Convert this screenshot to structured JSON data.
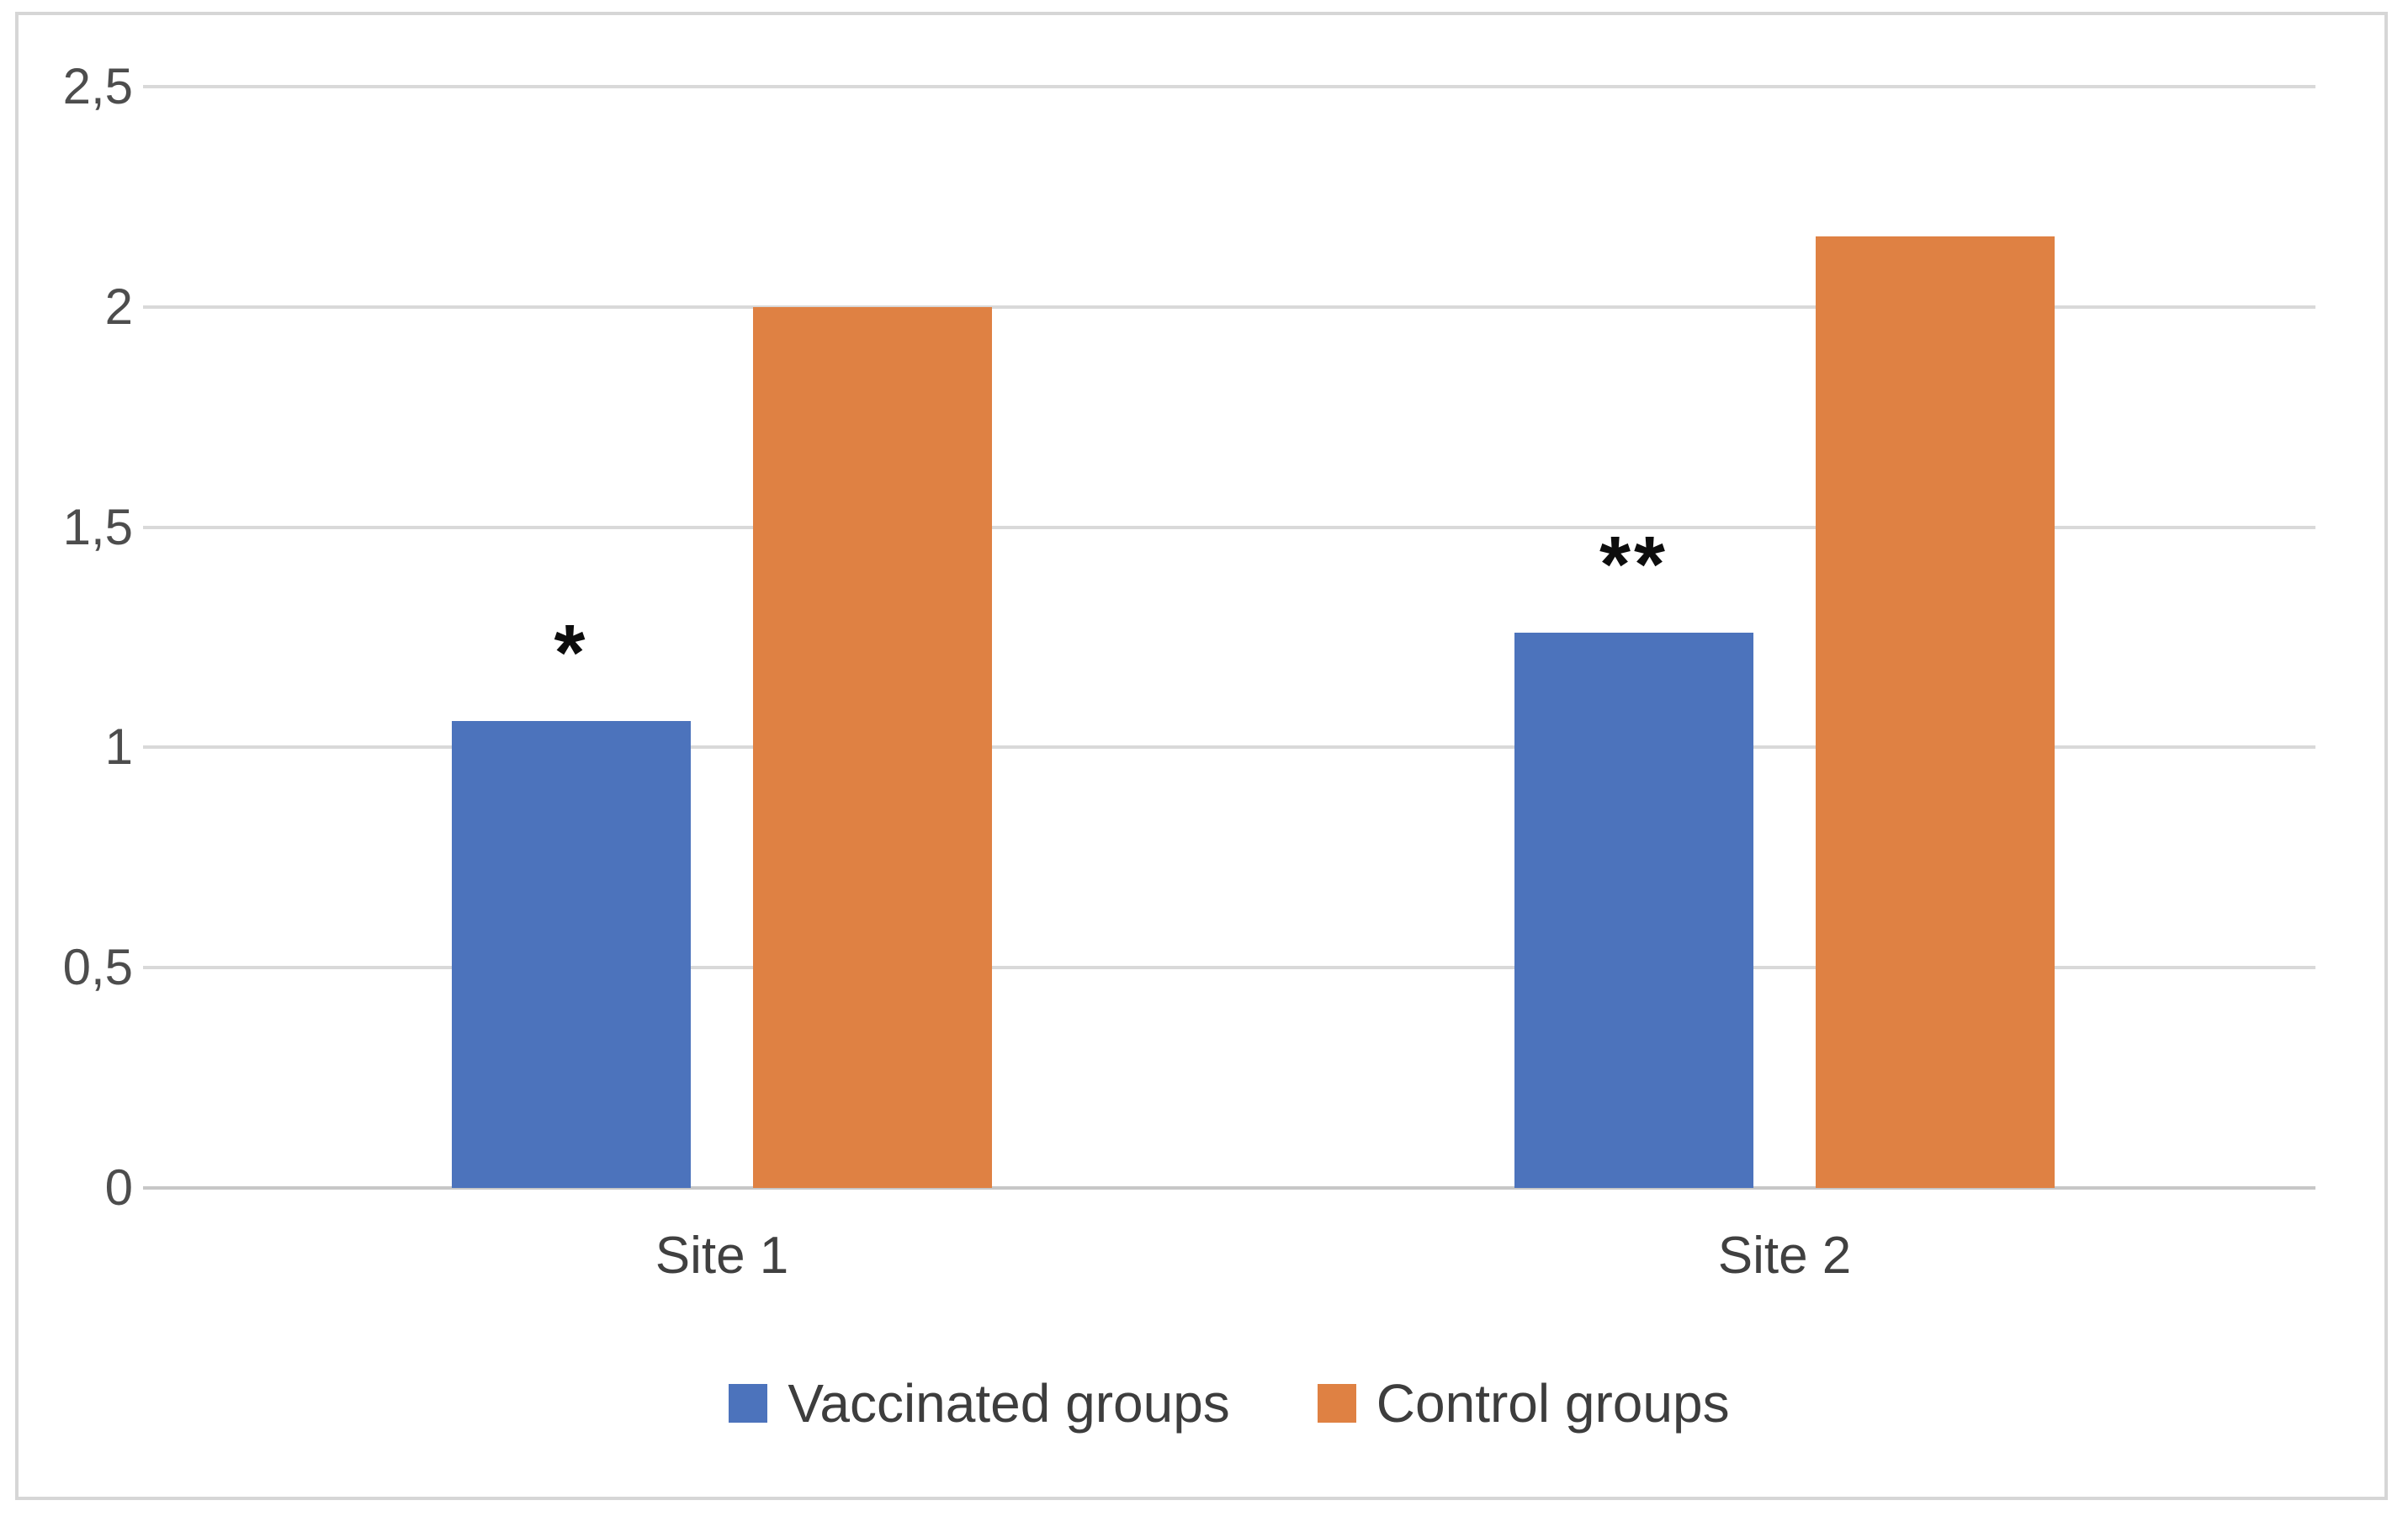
{
  "chart_data": {
    "type": "bar",
    "categories": [
      "Site 1",
      "Site 2"
    ],
    "series": [
      {
        "name": "Vaccinated groups",
        "color": "#4C73BC",
        "values": [
          1.06,
          1.26
        ]
      },
      {
        "name": "Control groups",
        "color": "#DF8143",
        "values": [
          2.0,
          2.16
        ]
      }
    ],
    "annotations": [
      {
        "category_index": 0,
        "series_index": 0,
        "text": "*"
      },
      {
        "category_index": 1,
        "series_index": 0,
        "text": "**"
      }
    ],
    "title": "",
    "xlabel": "",
    "ylabel": "",
    "ylim": [
      0,
      2.5
    ],
    "ytick_step": 0.5,
    "ytick_labels": [
      "0",
      "0,5",
      "1",
      "1,5",
      "2",
      "2,5"
    ],
    "grid": true,
    "legend_position": "bottom"
  },
  "colors": {
    "gridline": "#d9d9d9",
    "baseline": "#c7c7c7",
    "frame_border": "#d6d6d6",
    "tick_text": "#4d4d4d",
    "category_text": "#404040",
    "legend_text": "#3d3d3d",
    "annotation_text": "#0d0d0d",
    "background": "#ffffff"
  }
}
